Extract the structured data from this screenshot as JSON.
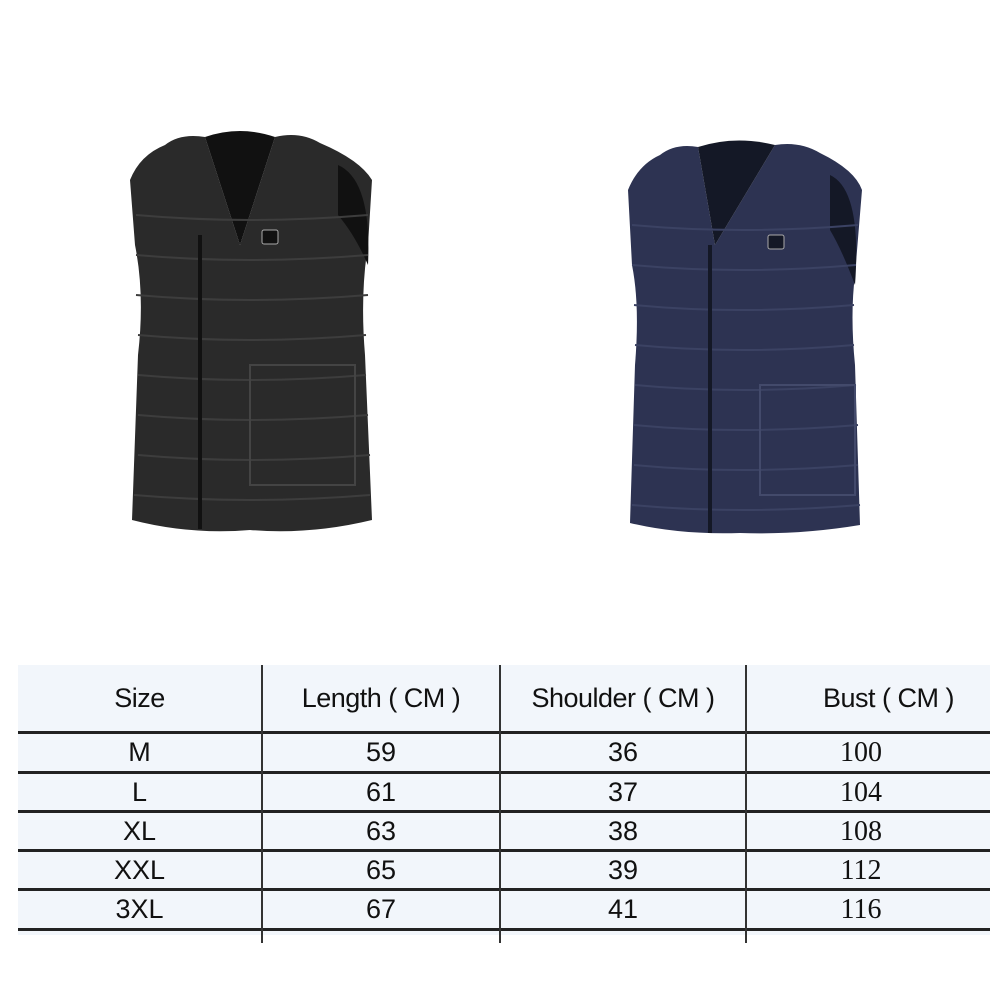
{
  "products": [
    {
      "name": "vest-black",
      "color": "#2a2a2a"
    },
    {
      "name": "vest-navy",
      "color": "#2d3352"
    }
  ],
  "size_chart": {
    "headers": [
      "Size",
      "Length ( CM )",
      "Shoulder ( CM )",
      "Bust ( CM )"
    ],
    "rows": [
      [
        "M",
        "59",
        "36",
        "100"
      ],
      [
        "L",
        "61",
        "37",
        "104"
      ],
      [
        "XL",
        "63",
        "38",
        "108"
      ],
      [
        "XXL",
        "65",
        "39",
        "112"
      ],
      [
        "3XL",
        "67",
        "41",
        "116"
      ]
    ]
  }
}
